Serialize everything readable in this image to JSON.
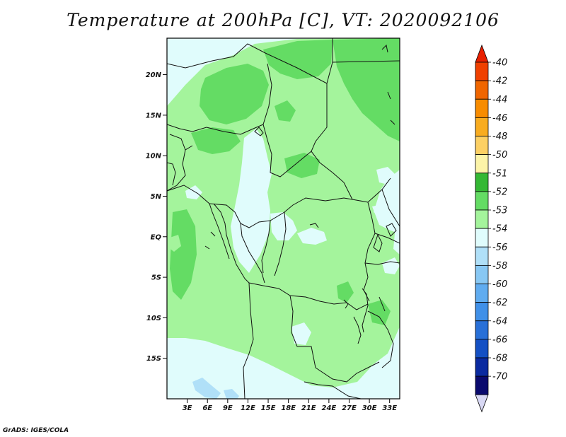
{
  "title": "Temperature at 200hPa [C], VT: 2020092106",
  "credit": "GrADS: IGES/COLA",
  "lat_ticks": [
    "20N",
    "15N",
    "10N",
    "5N",
    "EQ",
    "5S",
    "10S",
    "15S"
  ],
  "lon_ticks": [
    "3E",
    "6E",
    "9E",
    "12E",
    "15E",
    "18E",
    "21E",
    "24E",
    "27E",
    "30E",
    "33E"
  ],
  "colorbar": {
    "levels": [
      "-40",
      "-42",
      "-44",
      "-46",
      "-48",
      "-50",
      "-51",
      "-52",
      "-53",
      "-54",
      "-56",
      "-58",
      "-60",
      "-62",
      "-64",
      "-66",
      "-68",
      "-70"
    ],
    "colors": [
      "#e82000",
      "#f04000",
      "#f06600",
      "#f88c00",
      "#f8ac20",
      "#fcd064",
      "#fcf4a8",
      "#34b834",
      "#64dc64",
      "#a4f49c",
      "#e0fcfc",
      "#b0e0f8",
      "#88c8f4",
      "#60acf0",
      "#4090e8",
      "#2870d8",
      "#1450c4",
      "#0a2aa0",
      "#0a0a6e"
    ],
    "bottom_arrow_color": "#d8d8f4"
  },
  "field_colors": {
    "level_52": "#64dc64",
    "level_53": "#a4f49c",
    "level_54": "#e0fcfc",
    "level_56": "#b0e0f8"
  }
}
